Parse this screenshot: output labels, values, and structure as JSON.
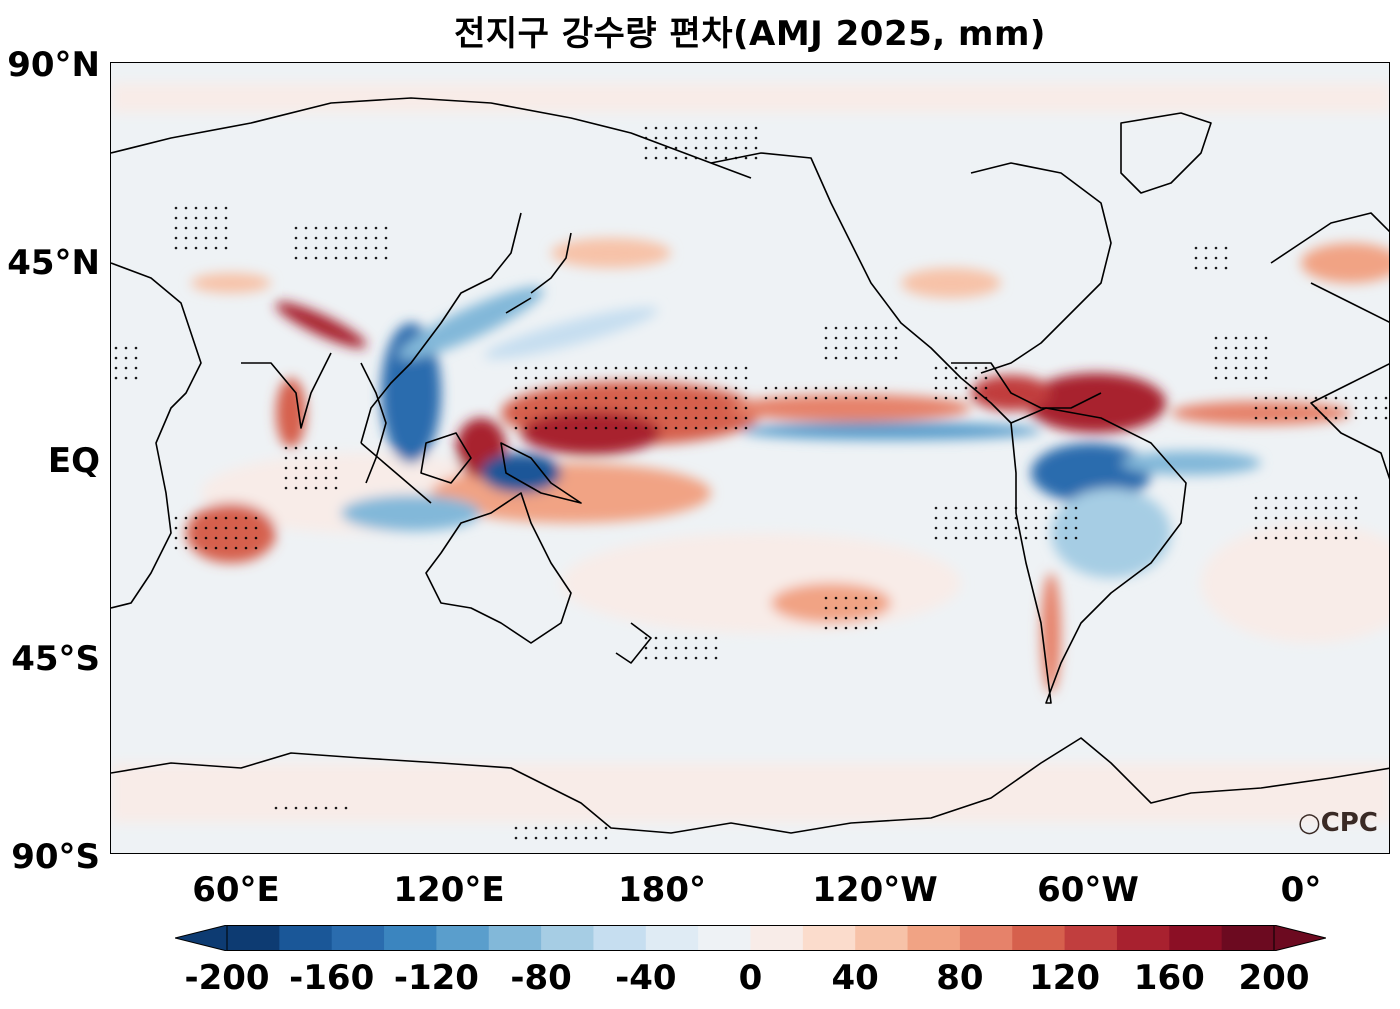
{
  "title": "전지구 강수량 편차(AMJ 2025, mm)",
  "lat_labels": [
    "90°N",
    "45°N",
    "EQ",
    "45°S",
    "90°S"
  ],
  "lon_labels": [
    "60°E",
    "120°E",
    "180°",
    "120°W",
    "60°W",
    "0°"
  ],
  "colorbar": {
    "levels": [
      -200,
      -180,
      -160,
      -140,
      -120,
      -100,
      -80,
      -60,
      -40,
      -20,
      0,
      20,
      40,
      60,
      80,
      100,
      120,
      140,
      160,
      180,
      200
    ],
    "tick_labels": [
      "-200",
      "-160",
      "-120",
      "-80",
      "-40",
      "0",
      "40",
      "80",
      "120",
      "160",
      "200"
    ],
    "colors": [
      "#0d3b72",
      "#1a5798",
      "#2a6cae",
      "#3b85bf",
      "#5a9ecc",
      "#82b8d9",
      "#a6cde4",
      "#c6def0",
      "#dfebf4",
      "#eef2f5",
      "#f8ece8",
      "#fbdccc",
      "#f7c2a8",
      "#f1a384",
      "#e6826a",
      "#d6604d",
      "#c13e3e",
      "#a8212f",
      "#8b0f25",
      "#6c0a20"
    ],
    "extend": "both"
  },
  "logo": "CPC"
}
